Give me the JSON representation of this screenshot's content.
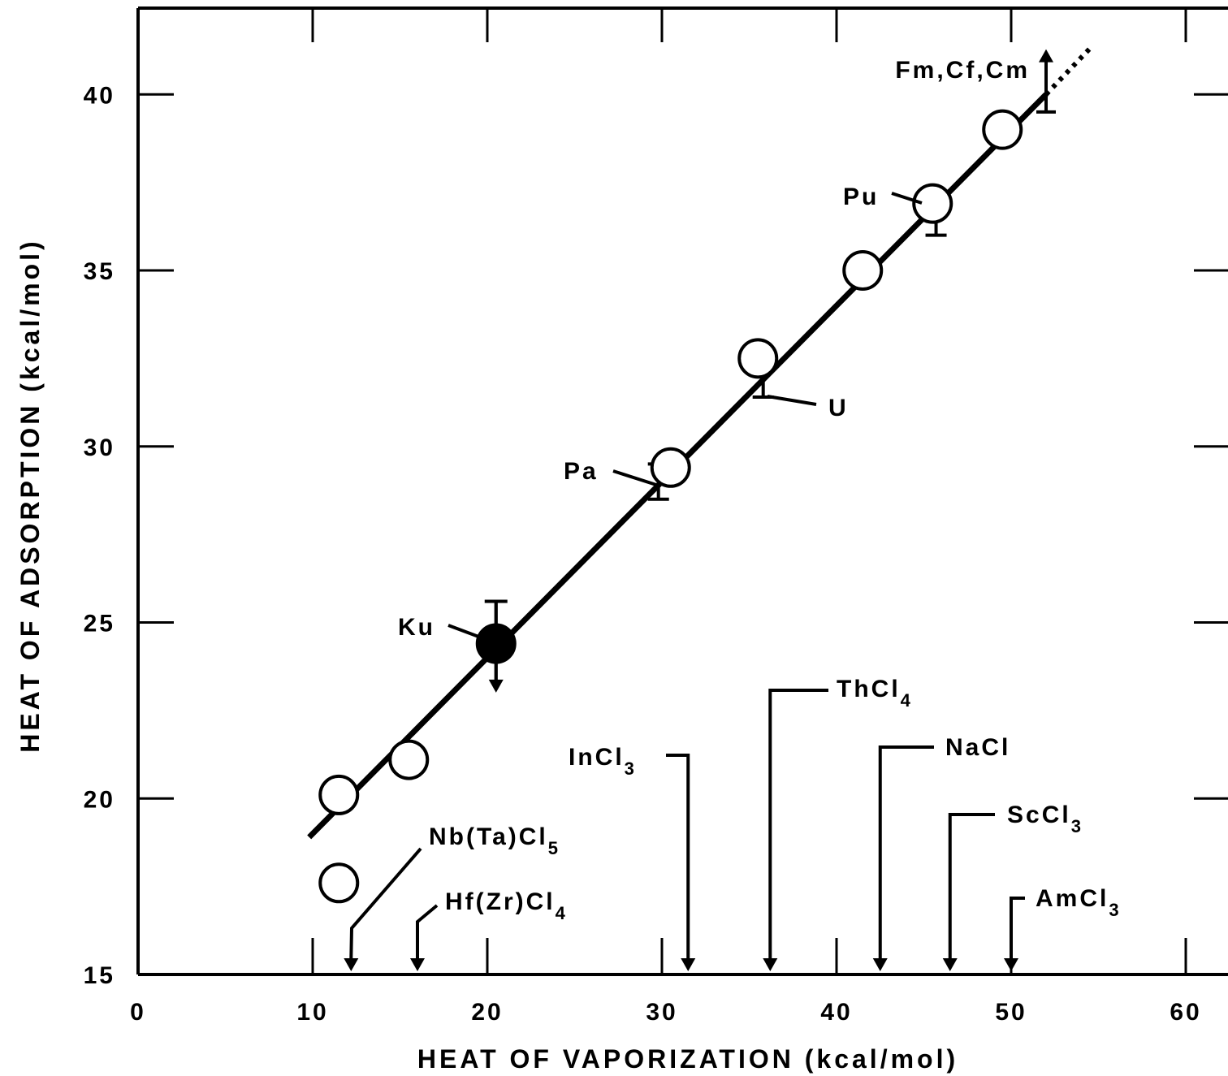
{
  "chart_data": {
    "type": "scatter",
    "xlabel": "HEAT OF VAPORIZATION (kcal/mol)",
    "ylabel": "HEAT OF ADSORPTION (kcal/mol)",
    "xlim": [
      0,
      62
    ],
    "ylim": [
      15,
      42.5
    ],
    "x_ticks": [
      0,
      10,
      20,
      30,
      40,
      50,
      60
    ],
    "y_ticks": [
      15,
      20,
      25,
      30,
      35,
      40
    ],
    "x_tick_labels": [
      "0",
      "10",
      "20",
      "30",
      "40",
      "50",
      "60"
    ],
    "y_tick_labels": [
      "15",
      "20",
      "25",
      "30",
      "35",
      "40"
    ],
    "grid": false,
    "series": [
      {
        "marker": "open-circle",
        "points": [
          {
            "x": 11.5,
            "y": 20.1
          },
          {
            "x": 15.5,
            "y": 21.1
          },
          {
            "x": 11.5,
            "y": 17.6
          },
          {
            "x": 30.5,
            "y": 29.4
          },
          {
            "x": 35.5,
            "y": 32.5
          },
          {
            "x": 41.5,
            "y": 35.0
          },
          {
            "x": 45.5,
            "y": 36.9
          },
          {
            "x": 49.5,
            "y": 39.0
          }
        ]
      },
      {
        "marker": "filled-circle",
        "points": [
          {
            "x": 20.5,
            "y": 24.4
          }
        ]
      }
    ],
    "error_bars": [
      {
        "x": 20.5,
        "y_low": 23.1,
        "y_high": 25.6,
        "arrow": "down"
      },
      {
        "x": 29.8,
        "y_low": 28.5,
        "y_high": 29.5
      },
      {
        "x": 35.8,
        "y_low": 31.4,
        "y_high": 32.4
      },
      {
        "x": 45.7,
        "y_low": 36.0,
        "y_high": 37.2
      },
      {
        "x": 52.0,
        "y_low": 39.5,
        "y_high": 41.1,
        "arrow": "up"
      }
    ],
    "fit_line": {
      "x": [
        9.8,
        52.0
      ],
      "y": [
        18.9,
        40.0
      ],
      "dotted_extension": {
        "x": [
          52.0,
          54.5
        ],
        "y": [
          40.0,
          41.3
        ]
      }
    },
    "annotations": [
      {
        "text": "Fm,Cf,Cm",
        "x": 52.0,
        "y": 41.1
      },
      {
        "text": "Pu",
        "x": 45.5,
        "y": 36.9
      },
      {
        "text": "U",
        "x": 35.8,
        "y": 31.6
      },
      {
        "text": "Pa",
        "x": 29.8,
        "y": 29.1
      },
      {
        "text": "Ku",
        "x": 20.5,
        "y": 24.4
      }
    ],
    "reference_markers": [
      {
        "label": "Nb(Ta)Cl",
        "subscript": "5",
        "x": 12.2
      },
      {
        "label": "Hf(Zr)Cl",
        "subscript": "4",
        "x": 16.0
      },
      {
        "label": "InCl",
        "subscript": "3",
        "x": 31.5
      },
      {
        "label": "ThCl",
        "subscript": "4",
        "x": 36.2
      },
      {
        "label": "NaCl",
        "subscript": "",
        "x": 42.5
      },
      {
        "label": "ScCl",
        "subscript": "3",
        "x": 46.5
      },
      {
        "label": "AmCl",
        "subscript": "3",
        "x": 50.0
      }
    ]
  }
}
